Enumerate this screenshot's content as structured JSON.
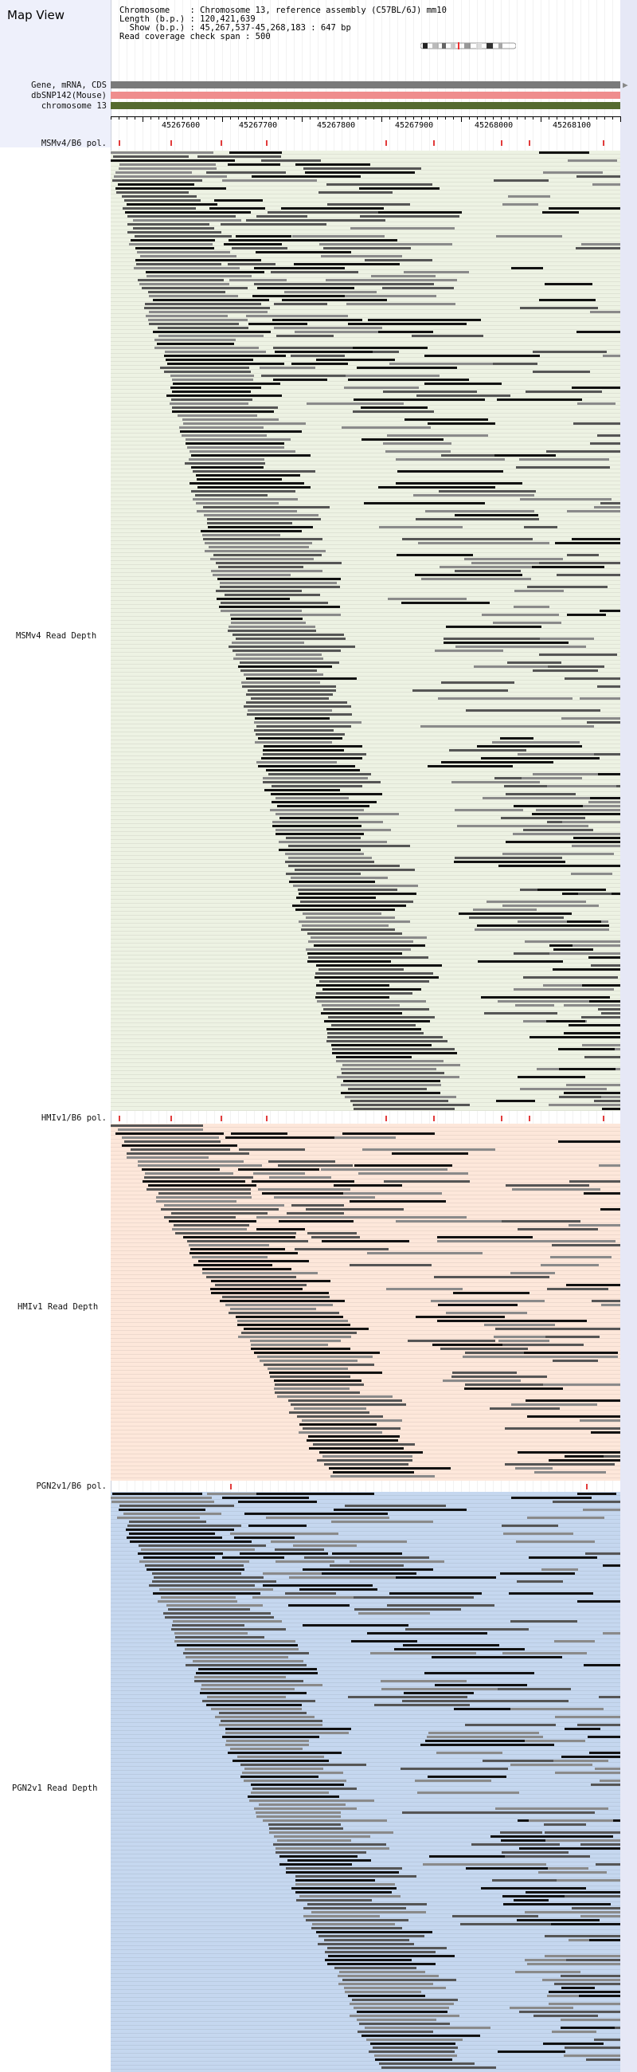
{
  "app": {
    "title": "Map View"
  },
  "header": {
    "chromosome_line": "Chromosome    : Chromosome 13, reference assembly (C57BL/6J) mm10",
    "length_line": "Length (b.p.) : 120,421,639",
    "show_line": "  Show (b.p.) : 45,267,537-45,268,183 : 647 bp",
    "coverage_line": "Read coverage check span : 500"
  },
  "tracks": {
    "gene_label": "Gene, mRNA, CDS",
    "dbsnp_label": "dbSNP142(Mouse)",
    "chrom_label": "chromosome 13",
    "colors": {
      "gene": "#7a7a7a",
      "dbsnp": "#ef8d8d",
      "chrom": "#556b2f"
    }
  },
  "ruler": {
    "positions": [
      "45267600",
      "45267700",
      "45267800",
      "45267900",
      "45268000",
      "45268100"
    ]
  },
  "samples": [
    {
      "pol_label": "MSMv4/B6 pol.",
      "depth_label": "MSMv4 Read Depth",
      "bg": "#edf2e3"
    },
    {
      "pol_label": "HMIv1/B6 pol.",
      "depth_label": "HMIv1 Read Depth",
      "bg": "#fde7da"
    },
    {
      "pol_label": "PGN2v1/B6 pol.",
      "depth_label": "PGN2v1 Read Depth",
      "bg": "#c5d7ef"
    }
  ],
  "icons": {
    "arrow_right": "arrow-right-icon"
  }
}
